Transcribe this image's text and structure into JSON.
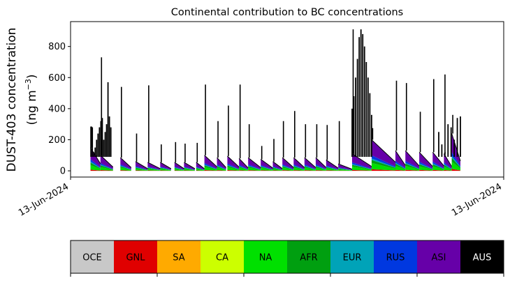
{
  "chart_data": {
    "type": "area",
    "title": "Continental contribution to BC concentrations",
    "ylabel_line1": "DUST-403 concentration",
    "ylabel_line2_pre": "(ng m",
    "ylabel_line2_sup": "−3",
    "ylabel_line2_post": ")",
    "xlabel": "",
    "ylim": [
      -40,
      960
    ],
    "yticks": [
      0,
      200,
      400,
      600,
      800
    ],
    "xticks": [
      {
        "pos": 0,
        "label": "13-Jun-2024"
      },
      {
        "pos": 1,
        "label": "13-Jun-2024"
      }
    ],
    "stack_order": [
      "GNL",
      "NA",
      "AFR",
      "EUR",
      "RUS",
      "ASI"
    ],
    "episodes": [
      {
        "x0": 0.046,
        "x1": 0.069,
        "base": 130,
        "top": 150,
        "peak": 285
      },
      {
        "x0": 0.069,
        "x1": 0.098,
        "base": 70,
        "top": 100,
        "peak": 730
      },
      {
        "x0": 0.115,
        "x1": 0.14,
        "base": 60,
        "top": 85,
        "peak": 540
      },
      {
        "x0": 0.15,
        "x1": 0.178,
        "base": 40,
        "top": 60,
        "peak": 240
      },
      {
        "x0": 0.178,
        "x1": 0.207,
        "base": 40,
        "top": 55,
        "peak": 550
      },
      {
        "x0": 0.207,
        "x1": 0.232,
        "base": 40,
        "top": 55,
        "peak": 170
      },
      {
        "x0": 0.24,
        "x1": 0.262,
        "base": 40,
        "top": 55,
        "peak": 185
      },
      {
        "x0": 0.262,
        "x1": 0.287,
        "base": 40,
        "top": 55,
        "peak": 175
      },
      {
        "x0": 0.29,
        "x1": 0.309,
        "base": 40,
        "top": 55,
        "peak": 180
      },
      {
        "x0": 0.309,
        "x1": 0.338,
        "base": 75,
        "top": 100,
        "peak": 555
      },
      {
        "x0": 0.338,
        "x1": 0.359,
        "base": 60,
        "top": 85,
        "peak": 320
      },
      {
        "x0": 0.362,
        "x1": 0.389,
        "base": 70,
        "top": 95,
        "peak": 420
      },
      {
        "x0": 0.389,
        "x1": 0.41,
        "base": 55,
        "top": 80,
        "peak": 555
      },
      {
        "x0": 0.41,
        "x1": 0.439,
        "base": 60,
        "top": 85,
        "peak": 300
      },
      {
        "x0": 0.439,
        "x1": 0.467,
        "base": 50,
        "top": 75,
        "peak": 160
      },
      {
        "x0": 0.467,
        "x1": 0.489,
        "base": 40,
        "top": 60,
        "peak": 205
      },
      {
        "x0": 0.489,
        "x1": 0.515,
        "base": 60,
        "top": 85,
        "peak": 320
      },
      {
        "x0": 0.515,
        "x1": 0.54,
        "base": 60,
        "top": 85,
        "peak": 385
      },
      {
        "x0": 0.54,
        "x1": 0.566,
        "base": 60,
        "top": 85,
        "peak": 300
      },
      {
        "x0": 0.566,
        "x1": 0.59,
        "base": 60,
        "top": 85,
        "peak": 300
      },
      {
        "x0": 0.59,
        "x1": 0.618,
        "base": 50,
        "top": 70,
        "peak": 295
      },
      {
        "x0": 0.618,
        "x1": 0.65,
        "base": 30,
        "top": 45,
        "peak": 320
      },
      {
        "x0": 0.65,
        "x1": 0.695,
        "base": 80,
        "top": 110,
        "peak": 910
      },
      {
        "x0": 0.695,
        "x1": 0.75,
        "base": 160,
        "top": 200,
        "peak": 275
      },
      {
        "x0": 0.75,
        "x1": 0.773,
        "base": 100,
        "top": 130,
        "peak": 580
      },
      {
        "x0": 0.773,
        "x1": 0.805,
        "base": 90,
        "top": 130,
        "peak": 565
      },
      {
        "x0": 0.805,
        "x1": 0.836,
        "base": 80,
        "top": 120,
        "peak": 380
      },
      {
        "x0": 0.836,
        "x1": 0.862,
        "base": 90,
        "top": 120,
        "peak": 590
      },
      {
        "x0": 0.862,
        "x1": 0.88,
        "base": 80,
        "top": 110,
        "peak": 620
      },
      {
        "x0": 0.88,
        "x1": 0.9,
        "base": 180,
        "top": 240,
        "peak": 360
      }
    ],
    "colorbar": [
      {
        "label": "OCE",
        "color": "#c8c8c8",
        "text": "#000000"
      },
      {
        "label": "GNL",
        "color": "#e00000",
        "text": "#000000"
      },
      {
        "label": "SA",
        "color": "#ffaa00",
        "text": "#000000"
      },
      {
        "label": "CA",
        "color": "#ccff00",
        "text": "#000000"
      },
      {
        "label": "NA",
        "color": "#00e000",
        "text": "#000000"
      },
      {
        "label": "AFR",
        "color": "#009f10",
        "text": "#000000"
      },
      {
        "label": "EUR",
        "color": "#00a3b8",
        "text": "#000000"
      },
      {
        "label": "RUS",
        "color": "#0038e0",
        "text": "#000000"
      },
      {
        "label": "ASI",
        "color": "#6600a8",
        "text": "#000000"
      },
      {
        "label": "AUS",
        "color": "#000000",
        "text": "#ffffff"
      }
    ]
  }
}
